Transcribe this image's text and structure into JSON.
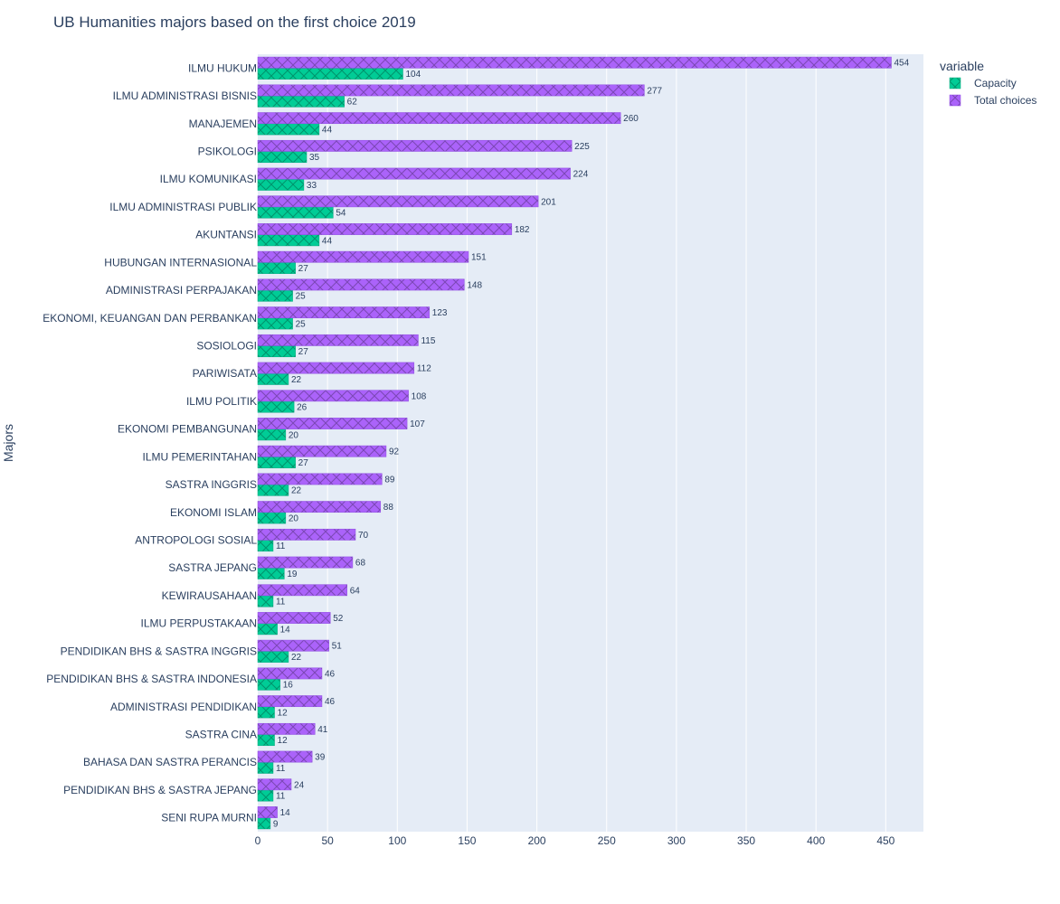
{
  "chart_data": {
    "type": "bar",
    "orientation": "horizontal",
    "title": "UB Humanities majors based on the first choice 2019",
    "ylabel": "Majors",
    "xlabel": "",
    "xlim": [
      0,
      477
    ],
    "xticks": [
      0,
      50,
      100,
      150,
      200,
      250,
      300,
      350,
      400,
      450
    ],
    "legend_title": "variable",
    "legend_position": "top-right",
    "categories": [
      "ILMU HUKUM",
      "ILMU ADMINISTRASI BISNIS",
      "MANAJEMEN",
      "PSIKOLOGI",
      "ILMU KOMUNIKASI",
      "ILMU ADMINISTRASI PUBLIK",
      "AKUNTANSI",
      "HUBUNGAN INTERNASIONAL",
      "ADMINISTRASI PERPAJAKAN",
      "EKONOMI, KEUANGAN DAN PERBANKAN",
      "SOSIOLOGI",
      "PARIWISATA",
      "ILMU POLITIK",
      "EKONOMI PEMBANGUNAN",
      "ILMU PEMERINTAHAN",
      "SASTRA INGGRIS",
      "EKONOMI ISLAM",
      "ANTROPOLOGI SOSIAL",
      "SASTRA JEPANG",
      "KEWIRAUSAHAAN",
      "ILMU PERPUSTAKAAN",
      "PENDIDIKAN BHS & SASTRA INGGRIS",
      "PENDIDIKAN BHS & SASTRA INDONESIA",
      "ADMINISTRASI PENDIDIKAN",
      "SASTRA CINA",
      "BAHASA DAN SASTRA PERANCIS",
      "PENDIDIKAN BHS & SASTRA JEPANG",
      "SENI RUPA MURNI"
    ],
    "series": [
      {
        "name": "Capacity",
        "color": "#00cc96",
        "values": [
          104,
          62,
          44,
          35,
          33,
          54,
          44,
          27,
          25,
          25,
          27,
          22,
          26,
          20,
          27,
          22,
          20,
          11,
          19,
          11,
          14,
          22,
          16,
          12,
          12,
          11,
          11,
          9
        ]
      },
      {
        "name": "Total choices",
        "color": "#ab63fa",
        "values": [
          454,
          277,
          260,
          225,
          224,
          201,
          182,
          151,
          148,
          123,
          115,
          112,
          108,
          107,
          92,
          89,
          88,
          70,
          68,
          64,
          52,
          51,
          46,
          46,
          41,
          39,
          24,
          14
        ]
      }
    ]
  }
}
